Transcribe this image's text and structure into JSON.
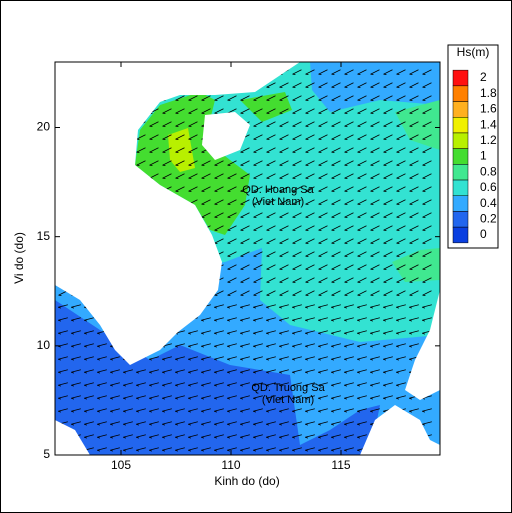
{
  "chart_data": {
    "type": "contour",
    "xlabel": "Kinh do (do)",
    "ylabel": "Vi do (do)",
    "xlim": [
      102,
      119.5
    ],
    "ylim": [
      5,
      23
    ],
    "xticks": [
      105,
      110,
      115
    ],
    "yticks": [
      5,
      10,
      15,
      20
    ],
    "colorbar": {
      "title": "Hs(m)",
      "levels": [
        2,
        1.8,
        1.6,
        1.4,
        1.2,
        1,
        0.8,
        0.6,
        0.4,
        0.2,
        0
      ],
      "colors": [
        "#ff1010",
        "#ff8000",
        "#ffb020",
        "#f0f000",
        "#b8f000",
        "#44dd30",
        "#40e890",
        "#33e2d2",
        "#33aaff",
        "#2266ee",
        "#0a3fe0"
      ]
    },
    "annotations": [
      "QD. Hoang Sa",
      "(Viet Nam)",
      "QD. Truong Sa",
      "(Viet Nam)"
    ]
  }
}
